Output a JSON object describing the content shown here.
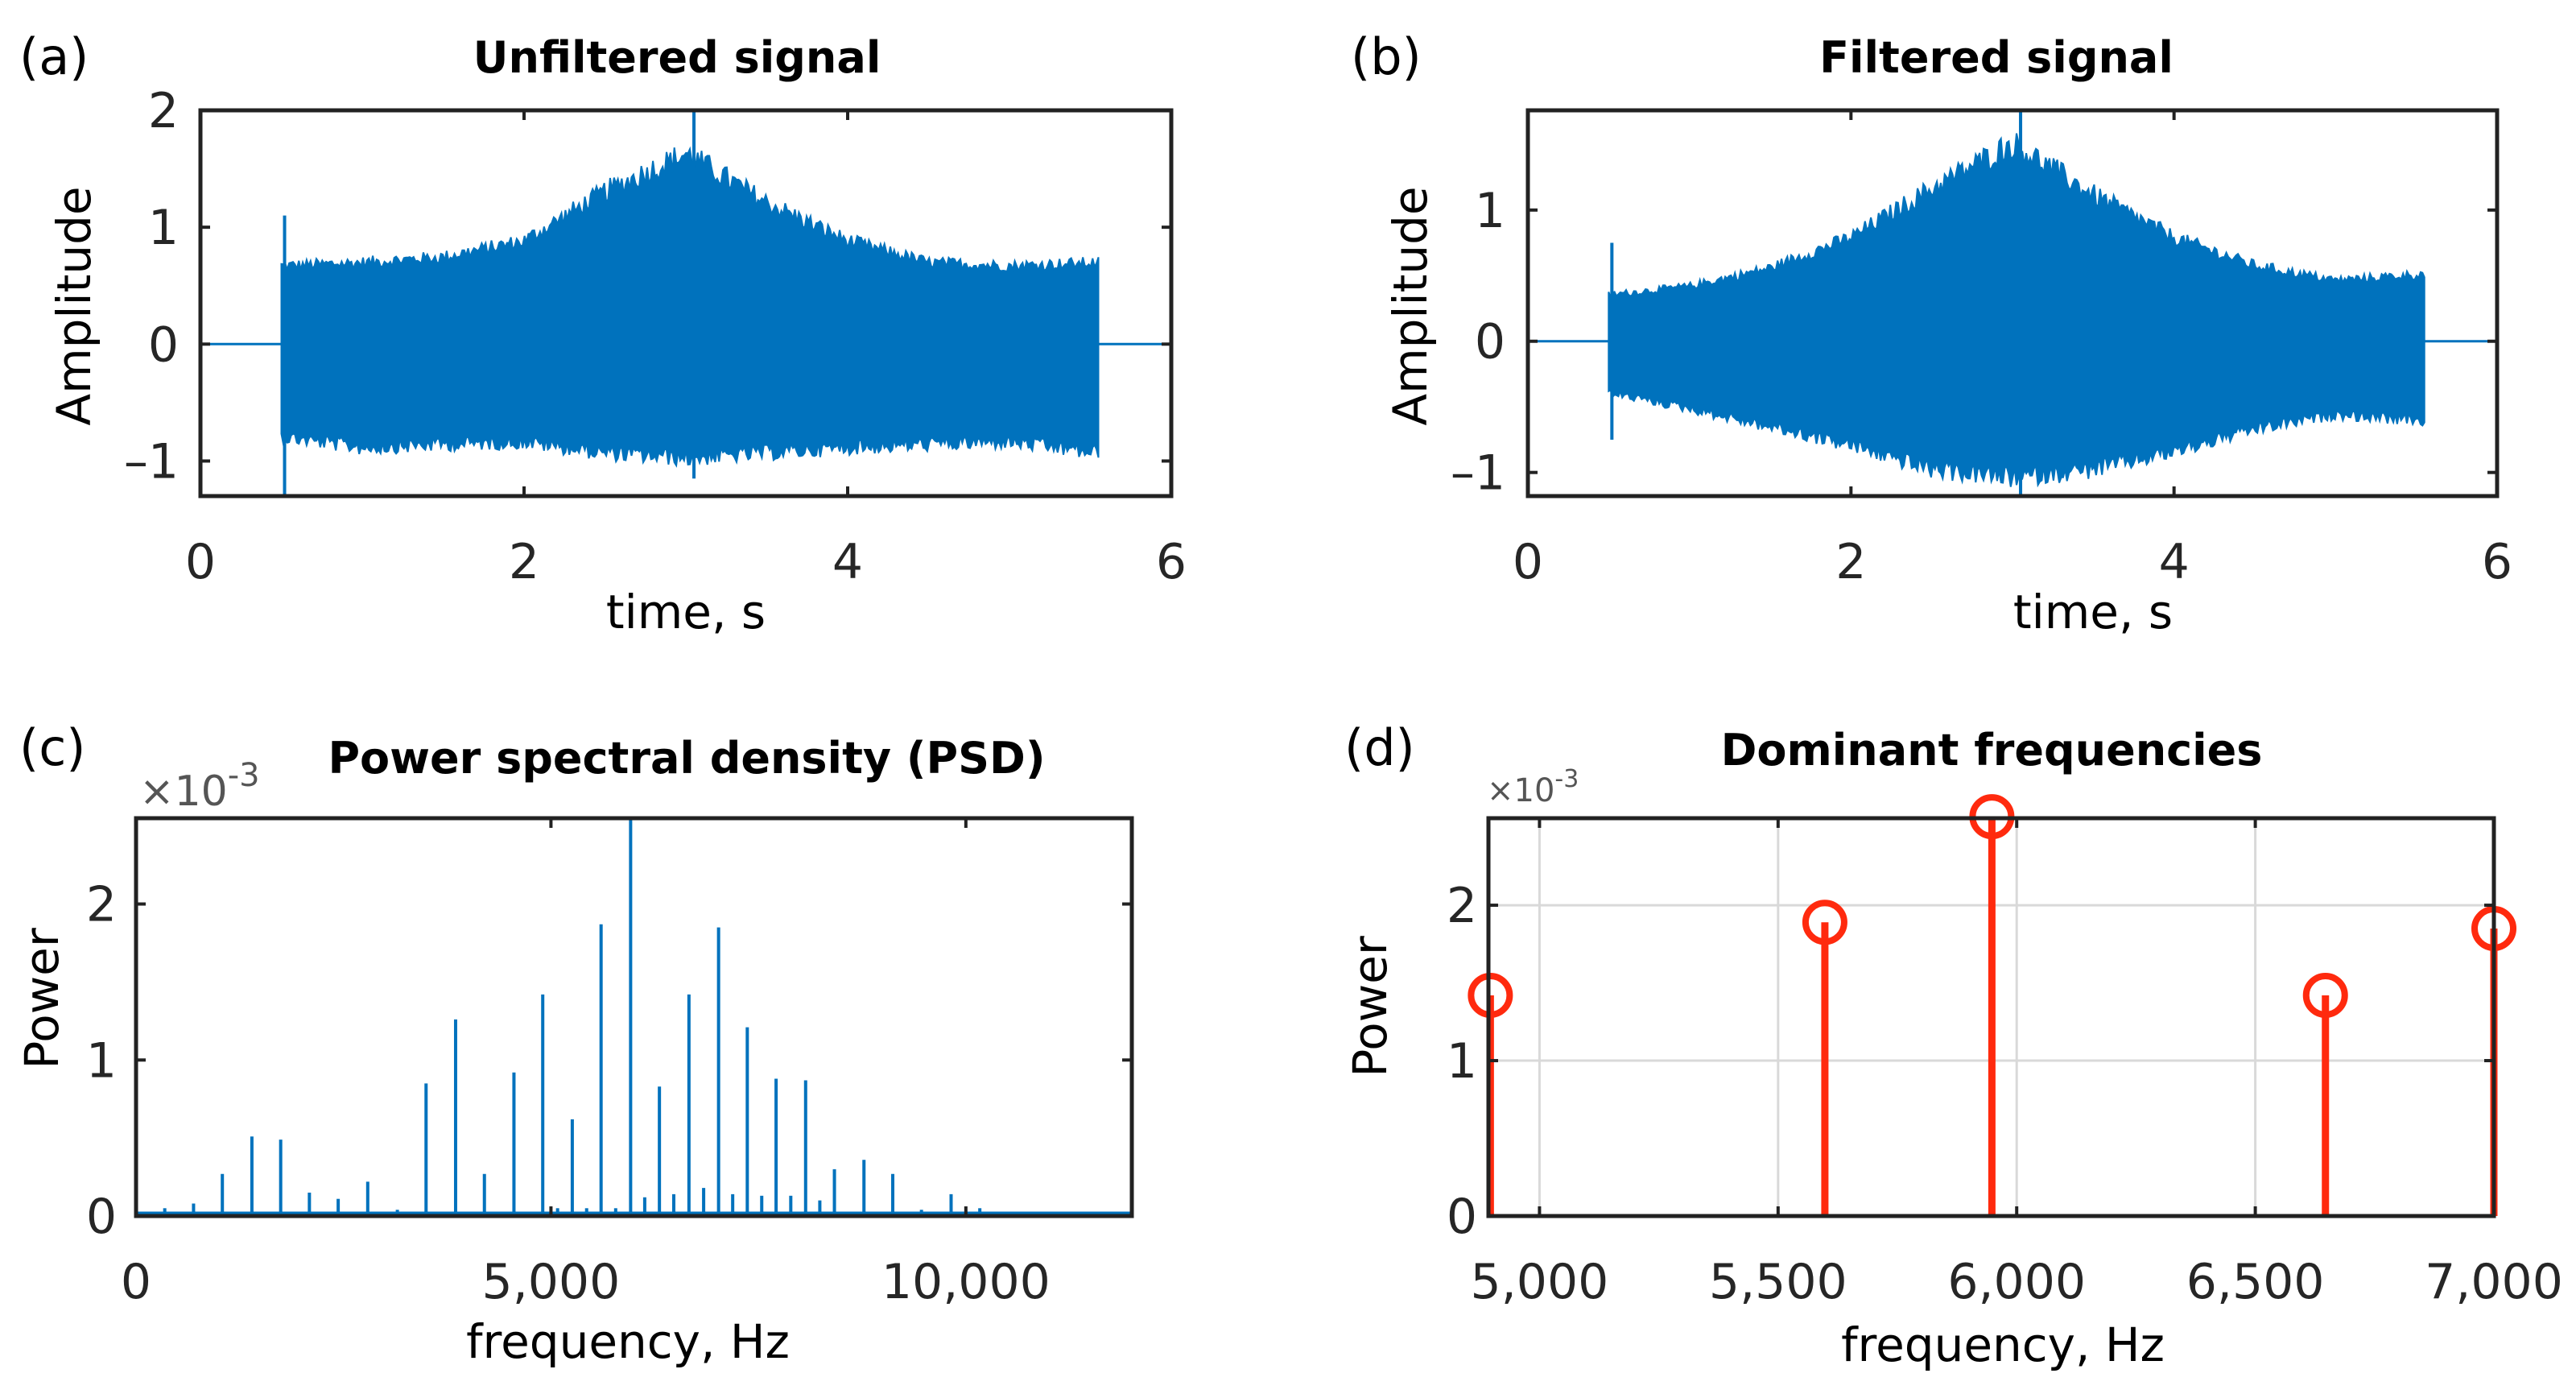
{
  "chart_data": [
    {
      "id": "a",
      "panel_label": "(a)",
      "type": "line",
      "title": "Unfiltered signal",
      "xlabel": "time, s",
      "ylabel": "Amplitude",
      "xlim": [
        0,
        6
      ],
      "ylim": [
        -1.3,
        2.0
      ],
      "xticks": [
        0,
        2,
        4,
        6
      ],
      "xtick_labels": [
        "0",
        "2",
        "4",
        "6"
      ],
      "yticks": [
        -1,
        0,
        1,
        2
      ],
      "ytick_labels": [
        "–1",
        "0",
        "1",
        "2"
      ],
      "color": "#0072bd",
      "signal_start": 0.5,
      "signal_end": 5.55,
      "envelope_t": [
        0.5,
        1.0,
        1.5,
        2.0,
        2.5,
        3.0,
        3.5,
        4.0,
        4.5,
        5.0,
        5.55
      ],
      "envelope_upper": [
        0.72,
        0.75,
        0.8,
        0.95,
        1.4,
        1.75,
        1.3,
        0.95,
        0.75,
        0.72,
        0.75
      ],
      "envelope_lower": [
        -0.85,
        -0.95,
        -0.92,
        -0.9,
        -1.0,
        -1.05,
        -1.0,
        -0.95,
        -0.92,
        -0.9,
        -1.0
      ],
      "spikes": [
        {
          "t": 0.52,
          "max": 1.1,
          "min": -1.3
        },
        {
          "t": 3.05,
          "max": 2.0,
          "min": -1.15
        }
      ]
    },
    {
      "id": "b",
      "panel_label": "(b)",
      "type": "line",
      "title": "Filtered signal",
      "xlabel": "time, s",
      "ylabel": "Amplitude",
      "xlim": [
        0,
        6
      ],
      "ylim": [
        -1.18,
        1.76
      ],
      "xticks": [
        0,
        2,
        4,
        6
      ],
      "xtick_labels": [
        "0",
        "2",
        "4",
        "6"
      ],
      "yticks": [
        -1,
        0,
        1
      ],
      "ytick_labels": [
        "–1",
        "0",
        "1"
      ],
      "color": "#0072bd",
      "signal_start": 0.5,
      "signal_end": 5.55,
      "envelope_t": [
        0.5,
        1.0,
        1.5,
        2.0,
        2.5,
        3.0,
        3.5,
        4.0,
        4.5,
        5.0,
        5.55
      ],
      "envelope_upper": [
        0.38,
        0.45,
        0.6,
        0.85,
        1.25,
        1.62,
        1.2,
        0.85,
        0.62,
        0.5,
        0.55
      ],
      "envelope_lower": [
        -0.42,
        -0.55,
        -0.7,
        -0.85,
        -1.05,
        -1.12,
        -1.05,
        -0.9,
        -0.72,
        -0.6,
        -0.65
      ],
      "spikes": [
        {
          "t": 0.52,
          "max": 0.75,
          "min": -0.75
        },
        {
          "t": 3.05,
          "max": 1.76,
          "min": -1.18
        }
      ]
    },
    {
      "id": "c",
      "panel_label": "(c)",
      "type": "line",
      "title": "Power spectral density (PSD)",
      "xlabel": "frequency, Hz",
      "ylabel": "Power",
      "y_multiplier": "×10",
      "y_exponent": "-3",
      "xlim": [
        0,
        12000
      ],
      "ylim": [
        0,
        2.55
      ],
      "xticks": [
        0,
        5000,
        10000
      ],
      "xtick_labels": [
        "0",
        "5,000",
        "10,000"
      ],
      "yticks": [
        0,
        1,
        2
      ],
      "ytick_labels": [
        "0",
        "1",
        "2"
      ],
      "color": "#0072bd",
      "peaks_freq": [
        346,
        693,
        1040,
        1396,
        1743,
        2089,
        2436,
        2792,
        3149,
        3495,
        3851,
        4198,
        4554,
        4901,
        5080,
        5257,
        5430,
        5604,
        5780,
        5960,
        6130,
        6307,
        6480,
        6663,
        6840,
        7020,
        7190,
        7366,
        7540,
        7713,
        7890,
        8069,
        8240,
        8416,
        8772,
        9119,
        9465,
        9822,
        10168
      ],
      "peaks_power": [
        0.05,
        0.08,
        0.27,
        0.51,
        0.49,
        0.15,
        0.11,
        0.22,
        0.04,
        0.85,
        1.26,
        0.27,
        0.92,
        1.42,
        0.05,
        0.62,
        0.05,
        1.87,
        0.05,
        2.55,
        0.12,
        0.83,
        0.14,
        1.42,
        0.18,
        1.85,
        0.14,
        1.21,
        0.13,
        0.88,
        0.13,
        0.87,
        0.1,
        0.3,
        0.36,
        0.27,
        0.04,
        0.14,
        0.05
      ]
    },
    {
      "id": "d",
      "panel_label": "(d)",
      "type": "stem",
      "title": "Dominant frequencies",
      "xlabel": "frequency, Hz",
      "ylabel": "Power",
      "y_multiplier": "×10",
      "y_exponent": "-3",
      "xlim": [
        4893,
        7000
      ],
      "ylim": [
        0,
        2.56
      ],
      "grid": true,
      "xticks": [
        5000,
        5500,
        6000,
        6500,
        7000
      ],
      "xtick_labels": [
        "5,000",
        "5,500",
        "6,000",
        "6,500",
        "7,000"
      ],
      "yticks": [
        0,
        1,
        2
      ],
      "ytick_labels": [
        "0",
        "1",
        "2"
      ],
      "color": "#ff2a0e",
      "x": [
        4897,
        5598,
        5948,
        6647,
        7000
      ],
      "y": [
        1.42,
        1.89,
        2.57,
        1.42,
        1.85
      ]
    }
  ]
}
